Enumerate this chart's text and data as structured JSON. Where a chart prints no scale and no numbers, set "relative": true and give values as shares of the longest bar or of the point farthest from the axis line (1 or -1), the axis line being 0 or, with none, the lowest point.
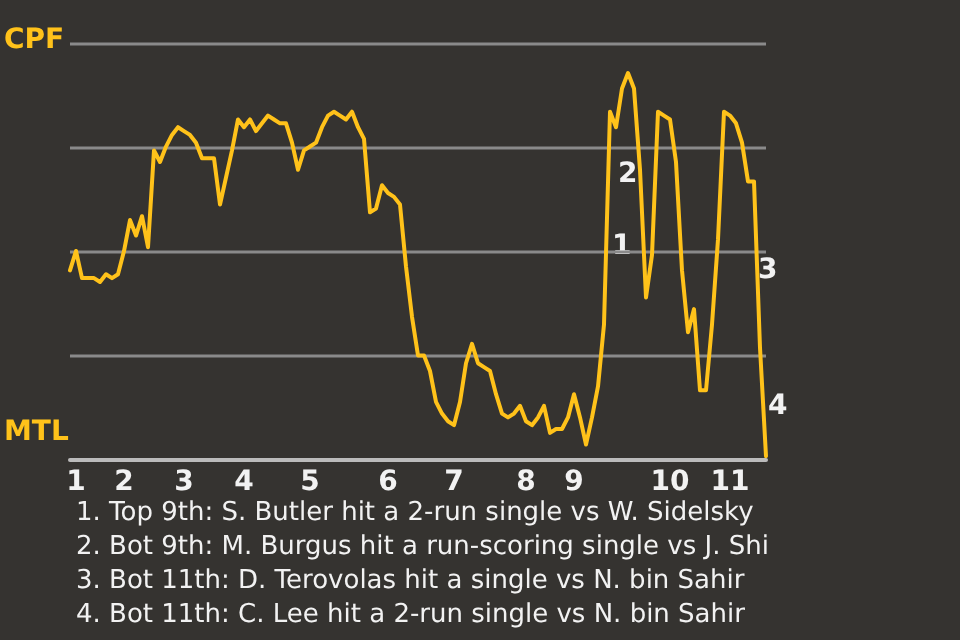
{
  "chart_data": {
    "type": "line",
    "relative": true,
    "grid": "y",
    "marker": "none",
    "line_style": "solid",
    "categories": [
      null,
      "1",
      null,
      null,
      null,
      null,
      null,
      null,
      null,
      "2",
      null,
      null,
      null,
      null,
      null,
      null,
      null,
      null,
      null,
      "3",
      null,
      null,
      null,
      null,
      null,
      null,
      null,
      null,
      null,
      "4",
      null,
      null,
      null,
      null,
      null,
      null,
      null,
      null,
      null,
      null,
      "5",
      null,
      null,
      null,
      null,
      null,
      null,
      null,
      null,
      null,
      null,
      null,
      null,
      "6",
      null,
      null,
      null,
      null,
      null,
      null,
      null,
      null,
      null,
      null,
      "7",
      null,
      null,
      null,
      null,
      null,
      null,
      null,
      null,
      null,
      null,
      null,
      "8",
      null,
      null,
      null,
      null,
      null,
      null,
      null,
      "9",
      null,
      null,
      null,
      null,
      null,
      null,
      null,
      null,
      null,
      null,
      null,
      null,
      null,
      null,
      null,
      "10",
      null,
      null,
      null,
      null,
      null,
      null,
      null,
      null,
      null,
      "11",
      null,
      null,
      null,
      null,
      null,
      null
    ],
    "series": [
      {
        "color": "#ffc21a",
        "values": [
          0.49,
          0.54,
          0.47,
          0.47,
          0.47,
          0.46,
          0.48,
          0.47,
          0.48,
          0.54,
          0.62,
          0.58,
          0.63,
          0.55,
          0.8,
          0.77,
          0.81,
          0.84,
          0.86,
          0.85,
          0.84,
          0.82,
          0.78,
          0.78,
          0.78,
          0.66,
          0.73,
          0.8,
          0.88,
          0.86,
          0.88,
          0.85,
          0.87,
          0.89,
          0.88,
          0.87,
          0.87,
          0.82,
          0.75,
          0.8,
          0.81,
          0.82,
          0.86,
          0.89,
          0.9,
          0.89,
          0.88,
          0.9,
          0.86,
          0.83,
          0.64,
          0.65,
          0.71,
          0.69,
          0.68,
          0.66,
          0.5,
          0.37,
          0.27,
          0.27,
          0.23,
          0.15,
          0.12,
          0.1,
          0.09,
          0.15,
          0.25,
          0.3,
          0.25,
          0.24,
          0.23,
          0.17,
          0.12,
          0.11,
          0.12,
          0.14,
          0.1,
          0.09,
          0.11,
          0.14,
          0.07,
          0.08,
          0.08,
          0.11,
          0.17,
          0.11,
          0.04,
          0.11,
          0.19,
          0.35,
          0.9,
          0.86,
          0.96,
          1,
          0.96,
          0.75,
          0.42,
          0.53,
          0.9,
          0.89,
          0.88,
          0.77,
          0.49,
          0.33,
          0.39,
          0.18,
          0.18,
          0.35,
          0.57,
          0.9,
          0.89,
          0.87,
          0.82,
          0.72,
          0.72,
          0.29,
          0.01
        ]
      }
    ],
    "annotations": [
      "CPF",
      "MTL",
      "1",
      "2",
      "3",
      "4",
      "1. Top 9th: S. Butler hit a 2-run single vs W. Sidelsky",
      "2. Bot 9th: M. Burgus hit a run-scoring single vs J. Shi",
      "3. Bot 11th: D. Terovolas hit a single vs N. bin Sahir",
      "4. Bot 11th: C. Lee hit a 2-run single vs N. bin Sahir"
    ]
  }
}
